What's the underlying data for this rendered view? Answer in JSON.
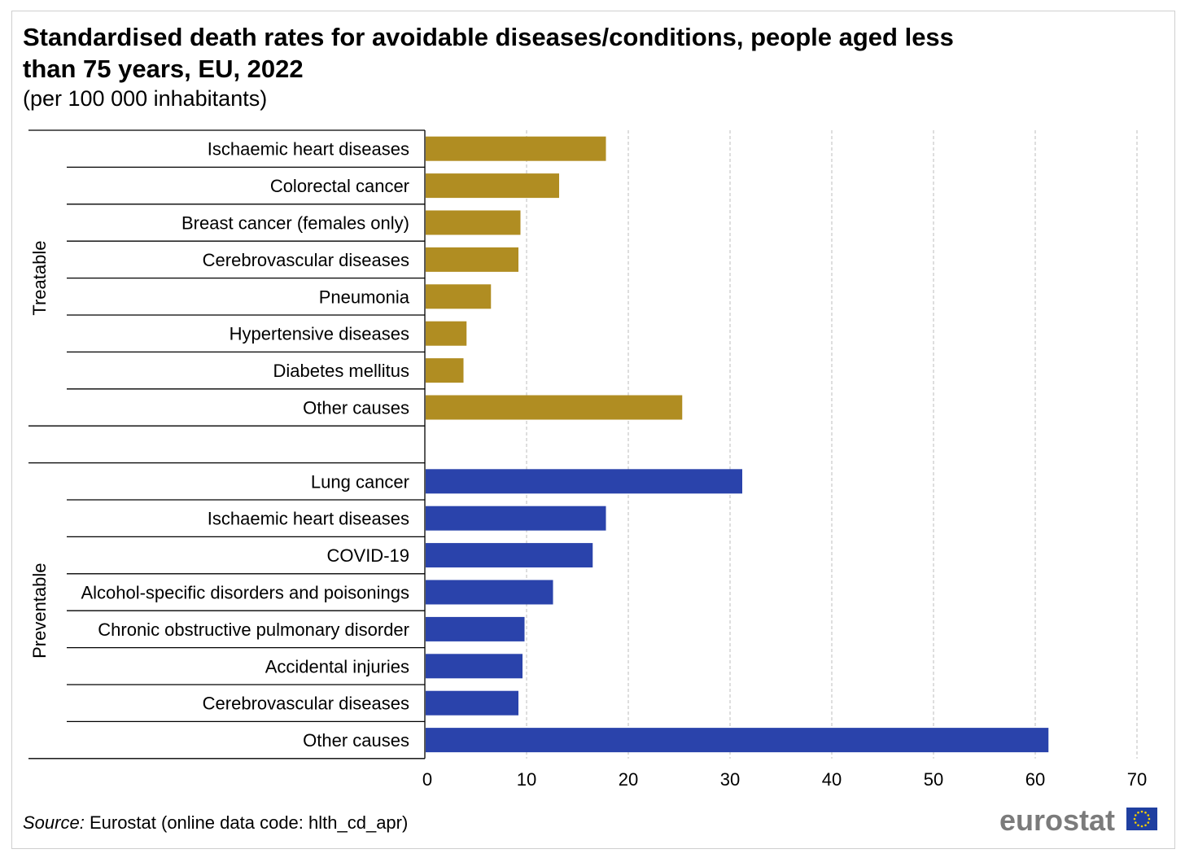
{
  "title": "Standardised death rates for avoidable diseases/conditions, people aged less than 75 years, EU, 2022",
  "subtitle": "(per 100 000 inhabitants)",
  "source": {
    "label": "Source:",
    "text": "Eurostat (online data code: hlth_cd_apr)"
  },
  "logo": {
    "text": "eurostat",
    "icon": "eu-flag-icon"
  },
  "colors": {
    "treatable": "#b08d22",
    "preventable": "#2a43ab",
    "grid": "#bdbdbd"
  },
  "chart_data": {
    "type": "bar",
    "orientation": "horizontal",
    "title": "Standardised death rates for avoidable diseases/conditions, people aged less than 75 years, EU, 2022",
    "subtitle": "(per 100 000 inhabitants)",
    "xlim": [
      0,
      70
    ],
    "xticks": [
      0,
      10,
      20,
      30,
      40,
      50,
      60,
      70
    ],
    "grid": "vertical dashed",
    "groups": [
      {
        "name": "Treatable",
        "color": "#b08d22",
        "categories": [
          "Ischaemic heart diseases",
          "Colorectal cancer",
          "Breast cancer (females only)",
          "Cerebrovascular diseases",
          "Pneumonia",
          "Hypertensive diseases",
          "Diabetes mellitus",
          "Other causes"
        ],
        "values": [
          17.8,
          13.2,
          9.4,
          9.2,
          6.5,
          4.1,
          3.8,
          25.3
        ]
      },
      {
        "name": "Preventable",
        "color": "#2a43ab",
        "categories": [
          "Lung cancer",
          "Ischaemic heart diseases",
          "COVID-19",
          "Alcohol-specific disorders and poisonings",
          "Chronic obstructive pulmonary disorder",
          "Accidental injuries",
          "Cerebrovascular diseases",
          "Other causes"
        ],
        "values": [
          31.2,
          17.8,
          16.5,
          12.6,
          9.8,
          9.6,
          9.2,
          61.3
        ]
      }
    ]
  }
}
